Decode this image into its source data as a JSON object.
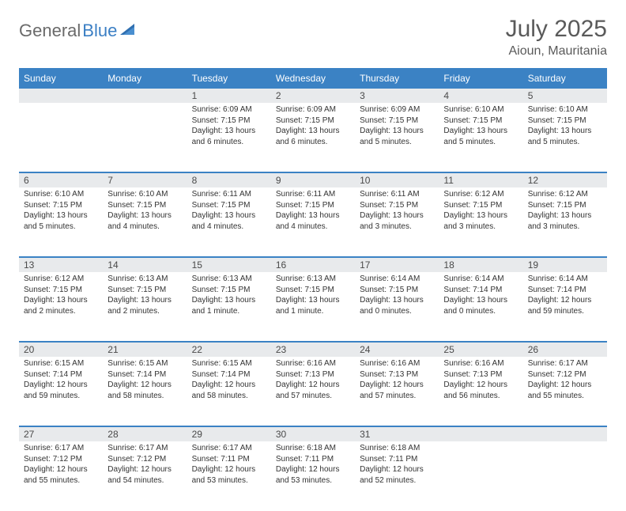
{
  "logo": {
    "text1": "General",
    "text2": "Blue"
  },
  "title": "July 2025",
  "location": "Aioun, Mauritania",
  "colors": {
    "header_bg": "#3b82c4",
    "header_text": "#ffffff",
    "daynum_bg": "#e8eaec",
    "row_border": "#3b82c4",
    "logo_gray": "#6a6a6a",
    "logo_blue": "#3b7fc4"
  },
  "daynames": [
    "Sunday",
    "Monday",
    "Tuesday",
    "Wednesday",
    "Thursday",
    "Friday",
    "Saturday"
  ],
  "weeks": [
    [
      null,
      null,
      {
        "n": "1",
        "sr": "Sunrise: 6:09 AM",
        "ss": "Sunset: 7:15 PM",
        "dl": "Daylight: 13 hours and 6 minutes."
      },
      {
        "n": "2",
        "sr": "Sunrise: 6:09 AM",
        "ss": "Sunset: 7:15 PM",
        "dl": "Daylight: 13 hours and 6 minutes."
      },
      {
        "n": "3",
        "sr": "Sunrise: 6:09 AM",
        "ss": "Sunset: 7:15 PM",
        "dl": "Daylight: 13 hours and 5 minutes."
      },
      {
        "n": "4",
        "sr": "Sunrise: 6:10 AM",
        "ss": "Sunset: 7:15 PM",
        "dl": "Daylight: 13 hours and 5 minutes."
      },
      {
        "n": "5",
        "sr": "Sunrise: 6:10 AM",
        "ss": "Sunset: 7:15 PM",
        "dl": "Daylight: 13 hours and 5 minutes."
      }
    ],
    [
      {
        "n": "6",
        "sr": "Sunrise: 6:10 AM",
        "ss": "Sunset: 7:15 PM",
        "dl": "Daylight: 13 hours and 5 minutes."
      },
      {
        "n": "7",
        "sr": "Sunrise: 6:10 AM",
        "ss": "Sunset: 7:15 PM",
        "dl": "Daylight: 13 hours and 4 minutes."
      },
      {
        "n": "8",
        "sr": "Sunrise: 6:11 AM",
        "ss": "Sunset: 7:15 PM",
        "dl": "Daylight: 13 hours and 4 minutes."
      },
      {
        "n": "9",
        "sr": "Sunrise: 6:11 AM",
        "ss": "Sunset: 7:15 PM",
        "dl": "Daylight: 13 hours and 4 minutes."
      },
      {
        "n": "10",
        "sr": "Sunrise: 6:11 AM",
        "ss": "Sunset: 7:15 PM",
        "dl": "Daylight: 13 hours and 3 minutes."
      },
      {
        "n": "11",
        "sr": "Sunrise: 6:12 AM",
        "ss": "Sunset: 7:15 PM",
        "dl": "Daylight: 13 hours and 3 minutes."
      },
      {
        "n": "12",
        "sr": "Sunrise: 6:12 AM",
        "ss": "Sunset: 7:15 PM",
        "dl": "Daylight: 13 hours and 3 minutes."
      }
    ],
    [
      {
        "n": "13",
        "sr": "Sunrise: 6:12 AM",
        "ss": "Sunset: 7:15 PM",
        "dl": "Daylight: 13 hours and 2 minutes."
      },
      {
        "n": "14",
        "sr": "Sunrise: 6:13 AM",
        "ss": "Sunset: 7:15 PM",
        "dl": "Daylight: 13 hours and 2 minutes."
      },
      {
        "n": "15",
        "sr": "Sunrise: 6:13 AM",
        "ss": "Sunset: 7:15 PM",
        "dl": "Daylight: 13 hours and 1 minute."
      },
      {
        "n": "16",
        "sr": "Sunrise: 6:13 AM",
        "ss": "Sunset: 7:15 PM",
        "dl": "Daylight: 13 hours and 1 minute."
      },
      {
        "n": "17",
        "sr": "Sunrise: 6:14 AM",
        "ss": "Sunset: 7:15 PM",
        "dl": "Daylight: 13 hours and 0 minutes."
      },
      {
        "n": "18",
        "sr": "Sunrise: 6:14 AM",
        "ss": "Sunset: 7:14 PM",
        "dl": "Daylight: 13 hours and 0 minutes."
      },
      {
        "n": "19",
        "sr": "Sunrise: 6:14 AM",
        "ss": "Sunset: 7:14 PM",
        "dl": "Daylight: 12 hours and 59 minutes."
      }
    ],
    [
      {
        "n": "20",
        "sr": "Sunrise: 6:15 AM",
        "ss": "Sunset: 7:14 PM",
        "dl": "Daylight: 12 hours and 59 minutes."
      },
      {
        "n": "21",
        "sr": "Sunrise: 6:15 AM",
        "ss": "Sunset: 7:14 PM",
        "dl": "Daylight: 12 hours and 58 minutes."
      },
      {
        "n": "22",
        "sr": "Sunrise: 6:15 AM",
        "ss": "Sunset: 7:14 PM",
        "dl": "Daylight: 12 hours and 58 minutes."
      },
      {
        "n": "23",
        "sr": "Sunrise: 6:16 AM",
        "ss": "Sunset: 7:13 PM",
        "dl": "Daylight: 12 hours and 57 minutes."
      },
      {
        "n": "24",
        "sr": "Sunrise: 6:16 AM",
        "ss": "Sunset: 7:13 PM",
        "dl": "Daylight: 12 hours and 57 minutes."
      },
      {
        "n": "25",
        "sr": "Sunrise: 6:16 AM",
        "ss": "Sunset: 7:13 PM",
        "dl": "Daylight: 12 hours and 56 minutes."
      },
      {
        "n": "26",
        "sr": "Sunrise: 6:17 AM",
        "ss": "Sunset: 7:12 PM",
        "dl": "Daylight: 12 hours and 55 minutes."
      }
    ],
    [
      {
        "n": "27",
        "sr": "Sunrise: 6:17 AM",
        "ss": "Sunset: 7:12 PM",
        "dl": "Daylight: 12 hours and 55 minutes."
      },
      {
        "n": "28",
        "sr": "Sunrise: 6:17 AM",
        "ss": "Sunset: 7:12 PM",
        "dl": "Daylight: 12 hours and 54 minutes."
      },
      {
        "n": "29",
        "sr": "Sunrise: 6:17 AM",
        "ss": "Sunset: 7:11 PM",
        "dl": "Daylight: 12 hours and 53 minutes."
      },
      {
        "n": "30",
        "sr": "Sunrise: 6:18 AM",
        "ss": "Sunset: 7:11 PM",
        "dl": "Daylight: 12 hours and 53 minutes."
      },
      {
        "n": "31",
        "sr": "Sunrise: 6:18 AM",
        "ss": "Sunset: 7:11 PM",
        "dl": "Daylight: 12 hours and 52 minutes."
      },
      null,
      null
    ]
  ]
}
